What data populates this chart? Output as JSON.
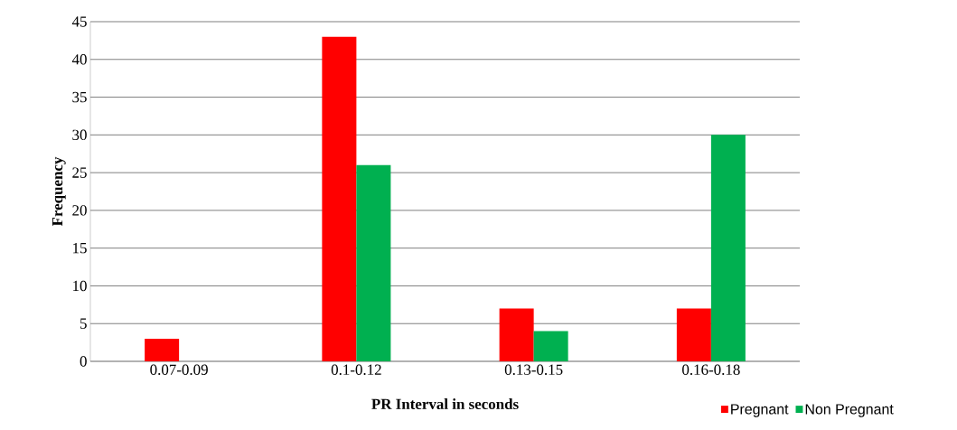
{
  "chart_data": {
    "type": "bar",
    "xlabel": "PR Interval in seconds",
    "ylabel": "Frequency",
    "categories": [
      "0.07-0.09",
      "0.1-0.12",
      "0.13-0.15",
      "0.16-0.18"
    ],
    "series": [
      {
        "name": "Pregnant",
        "color": "#ff0000",
        "values": [
          3,
          43,
          7,
          7
        ]
      },
      {
        "name": "Non Pregnant",
        "color": "#00b050",
        "values": [
          0,
          26,
          4,
          30
        ]
      }
    ],
    "ylim": [
      0,
      45
    ],
    "yticks": [
      0,
      5,
      10,
      15,
      20,
      25,
      30,
      35,
      40,
      45
    ],
    "grid": "y",
    "legend": "bottom right"
  }
}
